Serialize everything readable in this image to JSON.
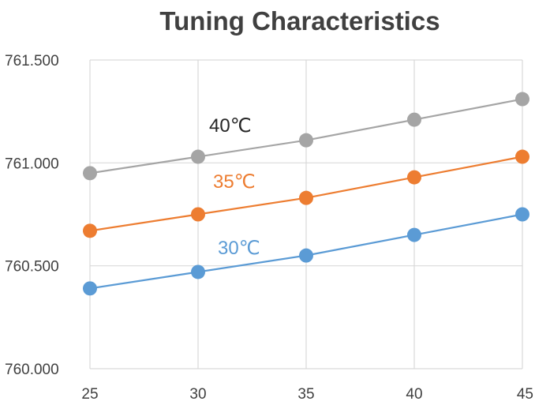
{
  "chart_data": {
    "type": "line",
    "title": "Tuning Characteristics",
    "xlabel": "",
    "ylabel": "",
    "x": [
      25,
      30,
      35,
      40,
      45
    ],
    "x_tick_labels": [
      "25",
      "30",
      "35",
      "40",
      "45"
    ],
    "xlim": [
      25,
      45
    ],
    "ylim": [
      760.0,
      761.5
    ],
    "y_ticks": [
      760.0,
      760.5,
      761.0,
      761.5
    ],
    "y_tick_labels": [
      "760.000",
      "760.500",
      "761.000",
      "761.500"
    ],
    "grid": true,
    "legend": "none",
    "series": [
      {
        "name": "40℃",
        "color": "#a5a5a5",
        "values": [
          760.95,
          761.03,
          761.11,
          761.21,
          761.31
        ]
      },
      {
        "name": "35℃",
        "color": "#ed7d31",
        "values": [
          760.67,
          760.75,
          760.83,
          760.93,
          761.03
        ]
      },
      {
        "name": "30℃",
        "color": "#5b9bd5",
        "values": [
          760.39,
          760.47,
          760.55,
          760.65,
          760.75
        ]
      }
    ]
  }
}
